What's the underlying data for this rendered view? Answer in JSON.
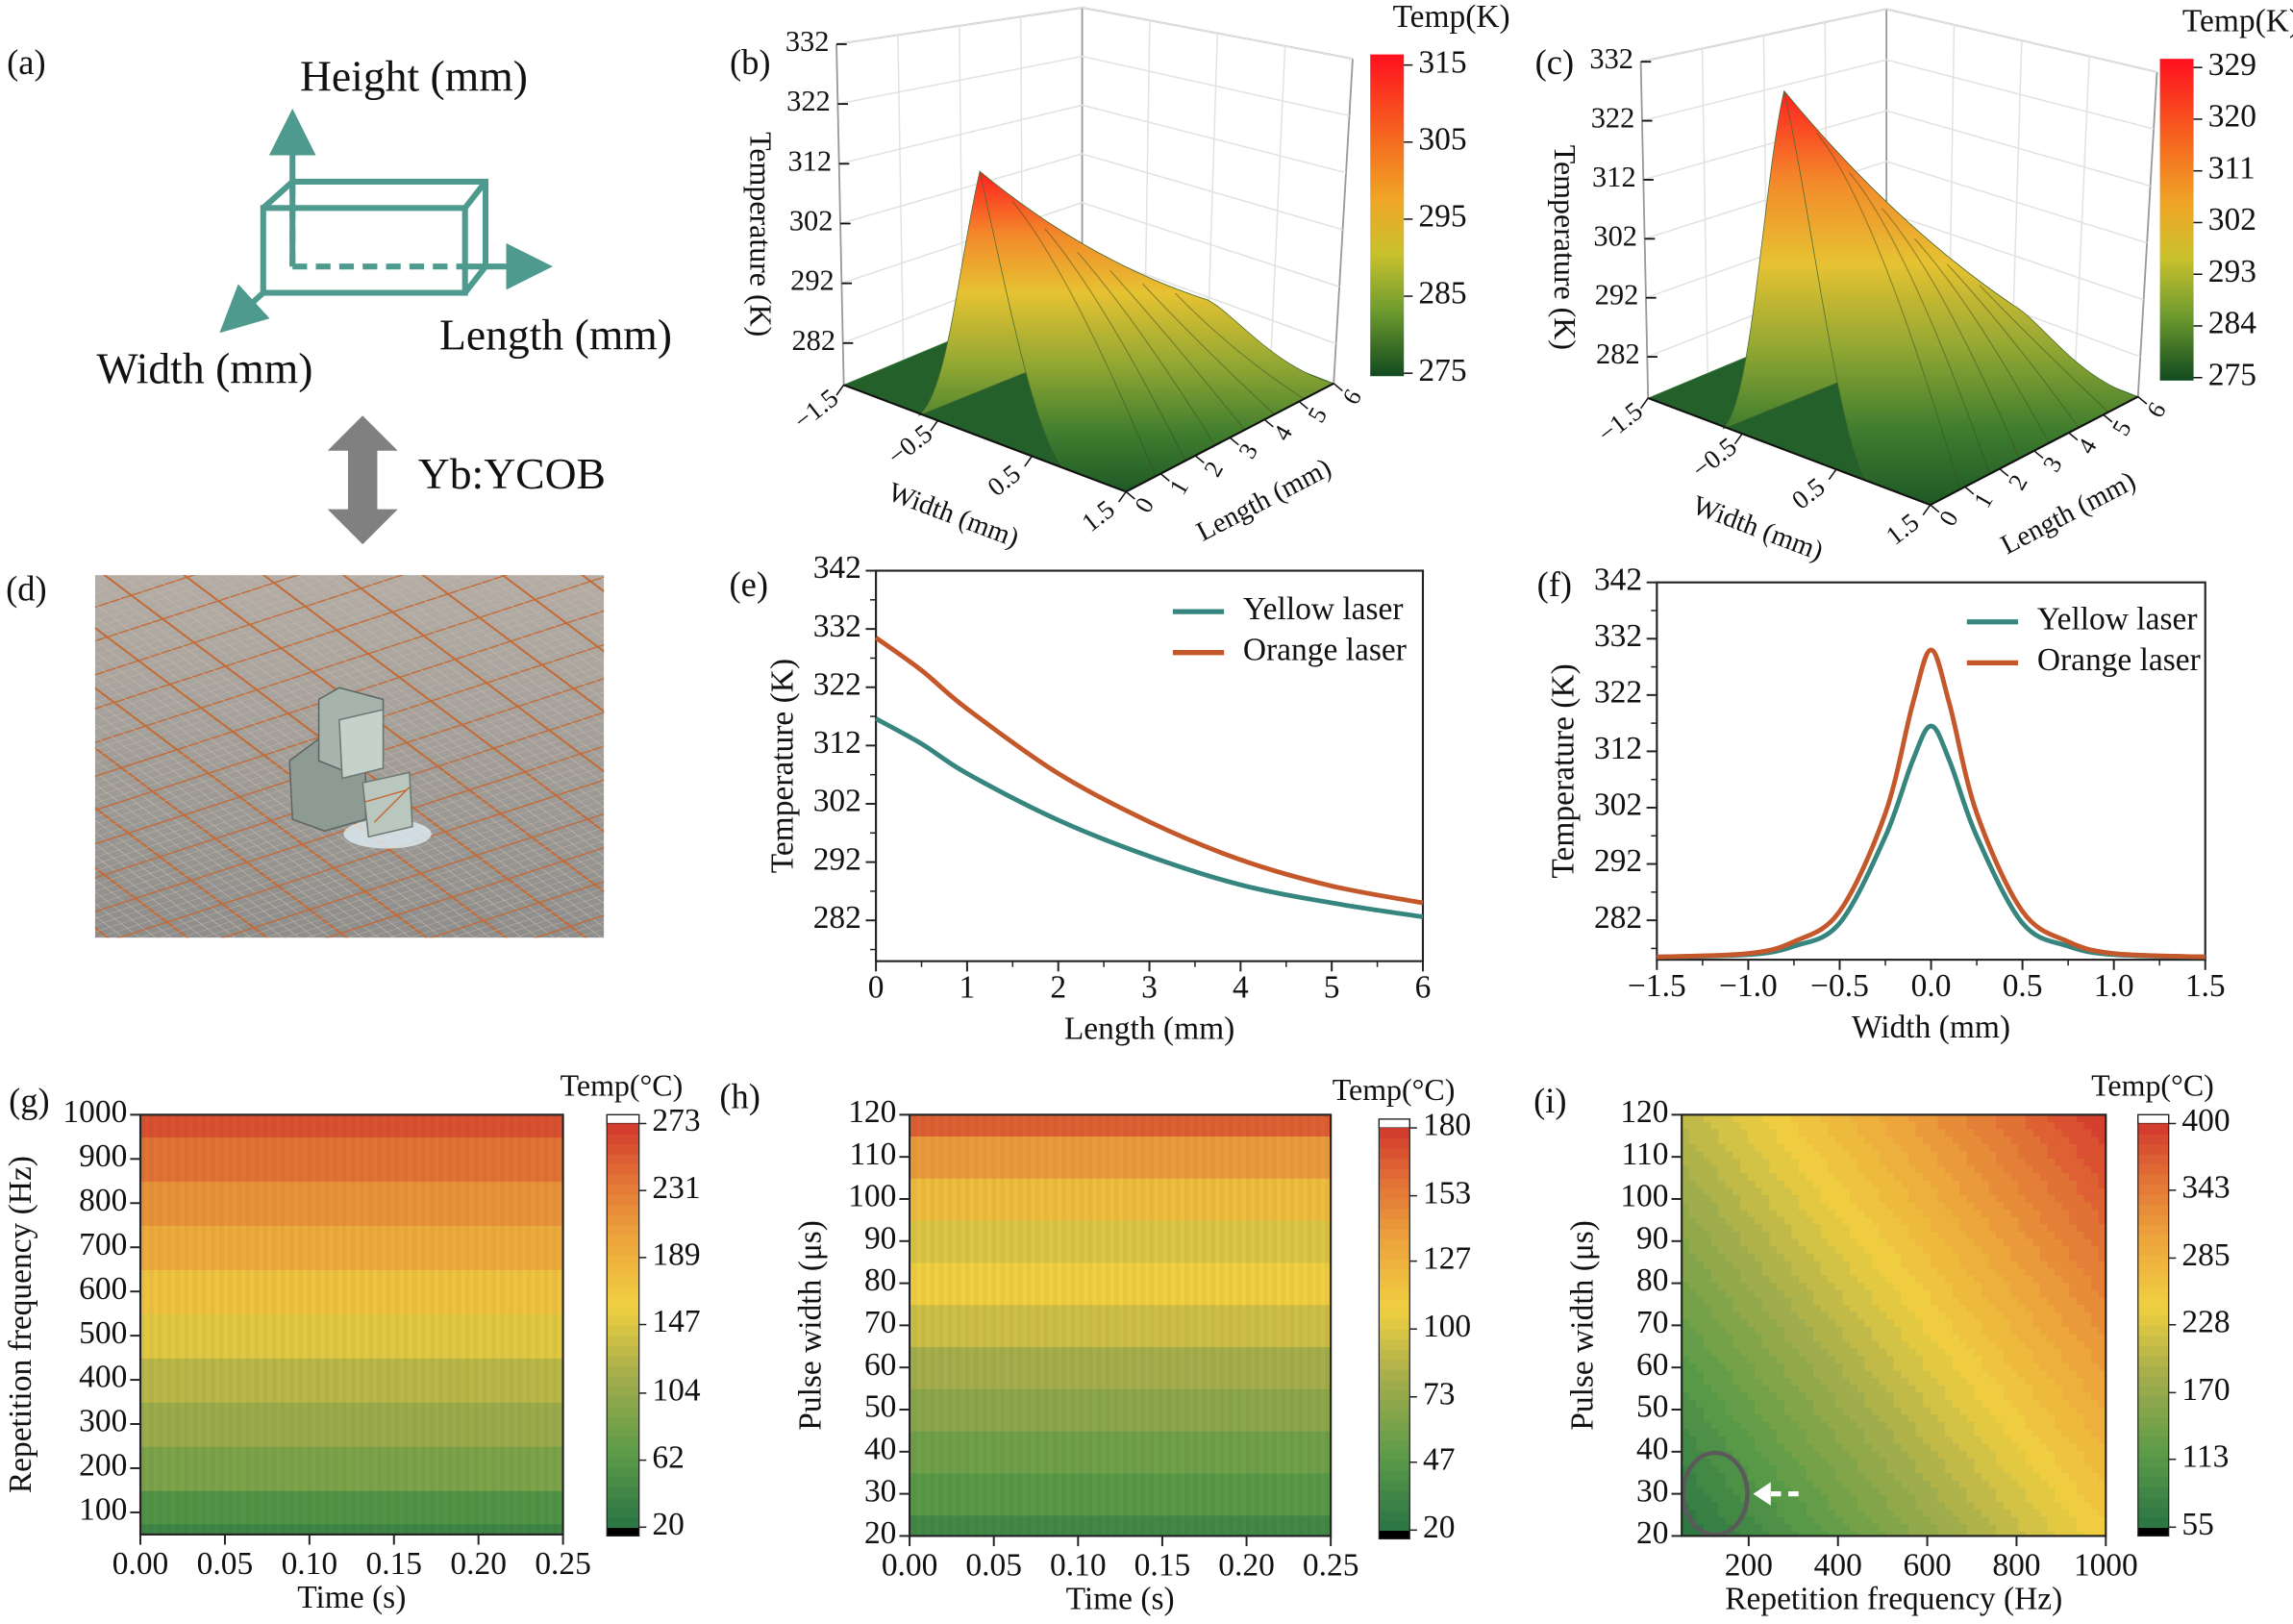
{
  "panel_a": {
    "label": "(a)",
    "height_axis": "Height (mm)",
    "width_axis": "Width (mm)",
    "length_axis": "Length (mm)",
    "crystal_label": "Yb:YCOB",
    "colors": {
      "diagram": "#4f9a8e",
      "arrow": "#808080"
    }
  },
  "panel_d": {
    "label": "(d)"
  },
  "colors": {
    "yellow_laser": "#37857f",
    "orange_laser": "#c5582b"
  },
  "chart_data": [
    {
      "panel": "(b)",
      "type": "surface",
      "xlabel": "Width (mm)",
      "ylabel": "Length (mm)",
      "zlabel": "Temperature (K)",
      "xlim": [
        -1.5,
        1.5
      ],
      "ylim": [
        0,
        6
      ],
      "zlim": [
        275,
        332
      ],
      "xtick_labels": [
        "−1.5",
        "−0.5",
        "0.5",
        "1.5"
      ],
      "ytick_labels": [
        "0",
        "1",
        "2",
        "3",
        "4",
        "5",
        "6"
      ],
      "zticks": [
        282,
        292,
        302,
        312,
        322,
        332
      ],
      "peak_temperature": 316.5,
      "colorbar": {
        "title": "Temp(K)",
        "ticks": [
          315,
          305,
          295,
          285,
          275
        ],
        "range": [
          275,
          316
        ]
      }
    },
    {
      "panel": "(c)",
      "type": "surface",
      "xlabel": "Width (mm)",
      "ylabel": "Length (mm)",
      "zlabel": "Temperature (K)",
      "xlim": [
        -1.5,
        1.5
      ],
      "ylim": [
        0,
        6
      ],
      "zlim": [
        275,
        332
      ],
      "xtick_labels": [
        "−1.5",
        "−0.5",
        "0.5",
        "1.5"
      ],
      "ytick_labels": [
        "0",
        "1",
        "2",
        "3",
        "4",
        "5",
        "6"
      ],
      "zticks": [
        282,
        292,
        302,
        312,
        322,
        332
      ],
      "peak_temperature": 330,
      "colorbar": {
        "title": "Temp(K)",
        "ticks": [
          329,
          320,
          311,
          302,
          293,
          284,
          275
        ],
        "range": [
          275,
          330
        ]
      }
    },
    {
      "panel": "(e)",
      "type": "line",
      "xlabel": "Length (mm)",
      "ylabel": "Temperature (K)",
      "xlim": [
        0,
        6
      ],
      "ylim": [
        275,
        342
      ],
      "xticks": [
        0,
        1,
        2,
        3,
        4,
        5,
        6
      ],
      "xtick_labels": [
        "0",
        "1",
        "2",
        "3",
        "4",
        "5",
        "6"
      ],
      "yticks": [
        282,
        292,
        302,
        312,
        322,
        332,
        342
      ],
      "legend": "top-right",
      "series": [
        {
          "name": "Yellow laser",
          "x": [
            0,
            0.5,
            1,
            2,
            3,
            4,
            5,
            6
          ],
          "y": [
            316.6,
            312.3,
            307.2,
            299.2,
            293.0,
            288.1,
            285.0,
            282.6
          ]
        },
        {
          "name": "Orange laser",
          "x": [
            0,
            0.5,
            1,
            2,
            3,
            4,
            5,
            6
          ],
          "y": [
            330.5,
            324.9,
            318.3,
            307.2,
            298.9,
            292.4,
            287.9,
            285.0
          ]
        }
      ]
    },
    {
      "panel": "(f)",
      "type": "line",
      "xlabel": "Width (mm)",
      "ylabel": "Temperature (K)",
      "xlim": [
        -1.5,
        1.5
      ],
      "ylim": [
        275,
        342
      ],
      "xticks": [
        -1.5,
        -1.0,
        -0.5,
        0.0,
        0.5,
        1.0,
        1.5
      ],
      "xtick_labels": [
        "−1.5",
        "−1.0",
        "−0.5",
        "0.0",
        "0.5",
        "1.0",
        "1.5"
      ],
      "yticks": [
        282,
        292,
        302,
        312,
        322,
        332,
        342
      ],
      "legend": "top-right",
      "series": [
        {
          "name": "Yellow laser",
          "x": [
            -1.5,
            -1.0,
            -0.75,
            -0.5,
            -0.25,
            -0.1,
            0,
            0.1,
            0.25,
            0.5,
            0.75,
            1.0,
            1.5
          ],
          "y": [
            275.5,
            275.9,
            277.4,
            281.5,
            296.9,
            310.4,
            316.5,
            310.4,
            296.9,
            281.5,
            277.4,
            275.9,
            275.5
          ]
        },
        {
          "name": "Orange laser",
          "x": [
            -1.5,
            -1.0,
            -0.75,
            -0.5,
            -0.25,
            -0.1,
            0,
            0.1,
            0.25,
            0.5,
            0.75,
            1.0,
            1.5
          ],
          "y": [
            275.5,
            276.1,
            278.2,
            283.6,
            301.0,
            320.5,
            330.0,
            320.5,
            301.0,
            283.6,
            278.2,
            276.1,
            275.5
          ]
        }
      ]
    },
    {
      "panel": "(g)",
      "type": "heatmap",
      "xlabel": "Time (s)",
      "ylabel": "Repetition frequency (Hz)",
      "xlim": [
        0,
        0.25
      ],
      "ylim": [
        50,
        1000
      ],
      "xticks": [
        0,
        0.05,
        0.1,
        0.15,
        0.2,
        0.25
      ],
      "xtick_labels": [
        "0.00",
        "0.05",
        "0.10",
        "0.15",
        "0.20",
        "0.25"
      ],
      "yticks": [
        100,
        200,
        300,
        400,
        500,
        600,
        700,
        800,
        900,
        1000
      ],
      "bands": [
        {
          "from": 50,
          "to": 75,
          "value": 40
        },
        {
          "from": 75,
          "to": 150,
          "value": 58
        },
        {
          "from": 150,
          "to": 250,
          "value": 88
        },
        {
          "from": 250,
          "to": 350,
          "value": 108
        },
        {
          "from": 350,
          "to": 450,
          "value": 128
        },
        {
          "from": 450,
          "to": 550,
          "value": 150
        },
        {
          "from": 550,
          "to": 650,
          "value": 172
        },
        {
          "from": 650,
          "to": 750,
          "value": 195
        },
        {
          "from": 750,
          "to": 850,
          "value": 215
        },
        {
          "from": 850,
          "to": 950,
          "value": 238
        },
        {
          "from": 950,
          "to": 1000,
          "value": 258
        }
      ],
      "colorbar": {
        "title": "Temp(°C)",
        "ticks": [
          20,
          62,
          104,
          147,
          189,
          231,
          273
        ],
        "range": [
          20,
          273
        ]
      }
    },
    {
      "panel": "(h)",
      "type": "heatmap",
      "xlabel": "Time (s)",
      "ylabel": "Pulse width (μs)",
      "xlim": [
        0,
        0.25
      ],
      "ylim": [
        20,
        120
      ],
      "xticks": [
        0,
        0.05,
        0.1,
        0.15,
        0.2,
        0.25
      ],
      "xtick_labels": [
        "0.00",
        "0.05",
        "0.10",
        "0.15",
        "0.20",
        "0.25"
      ],
      "yticks": [
        20,
        30,
        40,
        50,
        60,
        70,
        80,
        90,
        100,
        110,
        120
      ],
      "bands": [
        {
          "from": 20,
          "to": 25,
          "value": 35
        },
        {
          "from": 25,
          "to": 35,
          "value": 48
        },
        {
          "from": 35,
          "to": 45,
          "value": 58
        },
        {
          "from": 45,
          "to": 55,
          "value": 70
        },
        {
          "from": 55,
          "to": 65,
          "value": 80
        },
        {
          "from": 65,
          "to": 75,
          "value": 95
        },
        {
          "from": 75,
          "to": 85,
          "value": 108
        },
        {
          "from": 85,
          "to": 95,
          "value": 100
        },
        {
          "from": 95,
          "to": 105,
          "value": 120
        },
        {
          "from": 105,
          "to": 115,
          "value": 140
        },
        {
          "from": 115,
          "to": 120,
          "value": 165
        }
      ],
      "colorbar": {
        "title": "Temp(°C)",
        "ticks": [
          20,
          47,
          73,
          100,
          127,
          153,
          180
        ],
        "range": [
          20,
          180
        ]
      }
    },
    {
      "panel": "(i)",
      "type": "heatmap",
      "xlabel": "Repetition frequency (Hz)",
      "ylabel": "Pulse width (μs)",
      "xlim": [
        50,
        1000
      ],
      "ylim": [
        20,
        120
      ],
      "xticks": [
        200,
        400,
        600,
        800,
        1000
      ],
      "xtick_labels": [
        "200",
        "400",
        "600",
        "800",
        "1000"
      ],
      "yticks": [
        20,
        30,
        40,
        50,
        60,
        70,
        80,
        90,
        100,
        110,
        120
      ],
      "grid": {
        "x": [
          50,
          200,
          400,
          600,
          800,
          1000
        ],
        "y": [
          20,
          40,
          60,
          80,
          100,
          120
        ],
        "z": [
          [
            55,
            86,
            127,
            168,
            209,
            250
          ],
          [
            85,
            116,
            157,
            198,
            239,
            280
          ],
          [
            115,
            146,
            187,
            228,
            269,
            310
          ],
          [
            145,
            176,
            217,
            258,
            299,
            340
          ],
          [
            175,
            206,
            247,
            288,
            329,
            370
          ],
          [
            205,
            236,
            277,
            318,
            359,
            400
          ]
        ]
      },
      "highlight": {
        "frequency": 125,
        "pulse_width": 30
      },
      "colorbar": {
        "title": "Temp(°C)",
        "ticks": [
          55,
          113,
          170,
          228,
          285,
          343,
          400
        ],
        "range": [
          55,
          400
        ]
      }
    }
  ]
}
